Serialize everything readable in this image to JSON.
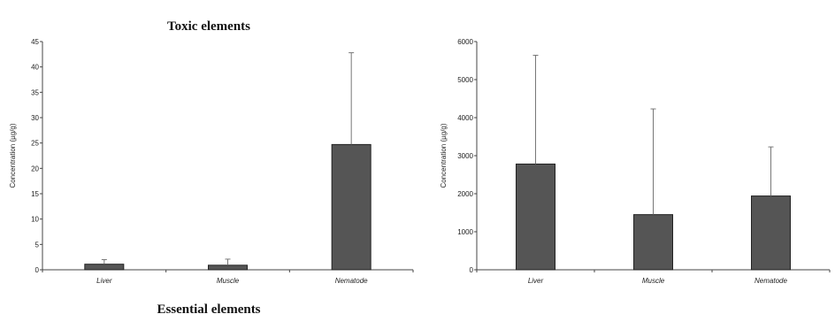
{
  "chart_data": [
    {
      "type": "bar",
      "title": "Toxic elements",
      "xlabel": "",
      "ylabel": "Concentration (µg/g)",
      "ylim": [
        0,
        45
      ],
      "yticks": [
        0,
        5,
        10,
        15,
        20,
        25,
        30,
        35,
        40,
        45
      ],
      "categories": [
        "Liver",
        "Muscle",
        "Nematode"
      ],
      "values": [
        1.1,
        0.9,
        24.7
      ],
      "error_upper": [
        0.9,
        1.2,
        18.1
      ],
      "bar_color": "#555555",
      "grid": false
    },
    {
      "type": "bar",
      "title": "Essential elements",
      "xlabel": "",
      "ylabel": "Concentration (µg/g)",
      "ylim": [
        0,
        6000
      ],
      "yticks": [
        0,
        1000,
        2000,
        3000,
        4000,
        5000,
        6000
      ],
      "categories": [
        "Liver",
        "Muscle",
        "Nematode"
      ],
      "values": [
        2780,
        1450,
        1940
      ],
      "error_upper": [
        2860,
        2780,
        1290
      ],
      "bar_color": "#555555",
      "grid": false
    }
  ]
}
